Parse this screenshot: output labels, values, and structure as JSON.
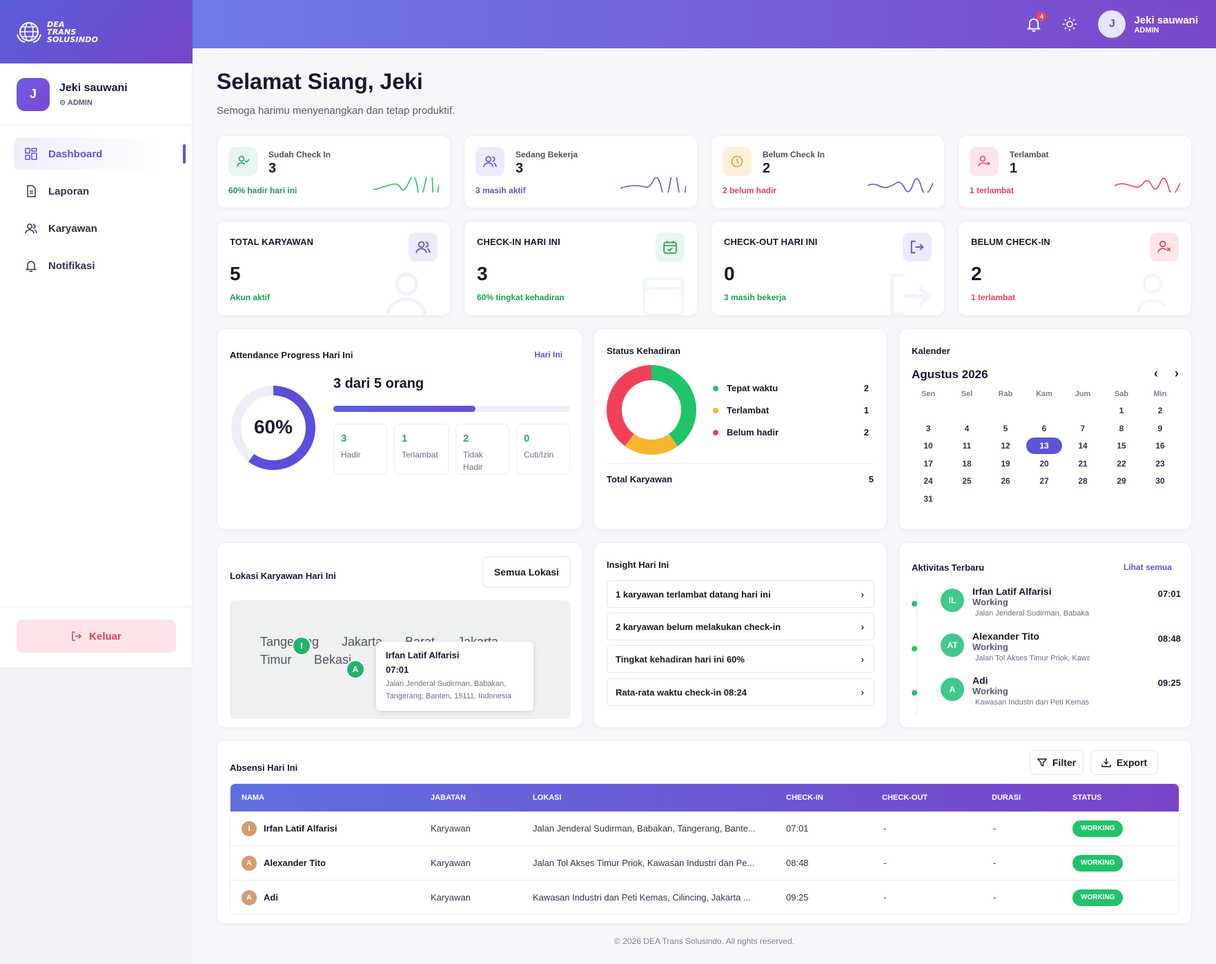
{
  "brand": {
    "line1": "DEA",
    "line2": "TRANS",
    "line3": "SOLUSINDO"
  },
  "user": {
    "name": "Jeki sauwani",
    "role": "ADMIN",
    "initial": "J"
  },
  "topbar": {
    "notif_count": "4"
  },
  "sidebar": {
    "items": [
      {
        "label": "Dashboard",
        "icon": "grid-icon",
        "active": true
      },
      {
        "label": "Laporan",
        "icon": "document-icon"
      },
      {
        "label": "Karyawan",
        "icon": "users-icon"
      },
      {
        "label": "Notifikasi",
        "icon": "bell-icon"
      }
    ],
    "logout": "Keluar"
  },
  "greeting": {
    "title": "Selamat Siang, Jeki",
    "subtitle": "Semoga harimu menyenangkan dan tetap produktif."
  },
  "stats": [
    {
      "label": "Sudah Check In",
      "value": "3",
      "sub": "60% hadir hari ini",
      "color": "#1f9d58",
      "icon": "user-check-icon"
    },
    {
      "label": "Sedang Bekerja",
      "value": "3",
      "sub": "3 masih aktif",
      "color": "#5c56d6",
      "icon": "users-icon"
    },
    {
      "label": "Belum Check In",
      "value": "2",
      "sub": "2 belum hadir",
      "color": "#e0405a",
      "icon": "clock-icon"
    },
    {
      "label": "Terlambat",
      "value": "1",
      "sub": "1 terlambat",
      "color": "#e0405a",
      "icon": "user-x-icon"
    }
  ],
  "summary": [
    {
      "label": "TOTAL KARYAWAN",
      "value": "5",
      "sub": "Akun aktif",
      "color": "#1f9d58",
      "icon": "users-icon"
    },
    {
      "label": "CHECK-IN HARI INI",
      "value": "3",
      "sub": "60% tingkat kehadiran",
      "color": "#1f9d58",
      "icon": "calendar-check-icon"
    },
    {
      "label": "CHECK-OUT HARI INI",
      "value": "0",
      "sub": "3 masih bekerja",
      "color": "#1f9d58",
      "icon": "logout-icon"
    },
    {
      "label": "BELUM CHECK-IN",
      "value": "2",
      "sub": "1 terlambat",
      "color": "#e0405a",
      "icon": "user-x-icon"
    }
  ],
  "progress": {
    "title": "Attendance Progress Hari Ini",
    "tag": "Hari Ini",
    "percent_label": "60%",
    "percent": 0.6,
    "headline": "3 dari 5 orang",
    "boxes": [
      {
        "num": "3",
        "label": "Hadir"
      },
      {
        "num": "1",
        "label": "Terlambat"
      },
      {
        "num": "2",
        "label": "Tidak Hadir"
      },
      {
        "num": "0",
        "label": "Cuti/Izin"
      }
    ]
  },
  "status": {
    "title": "Status Kehadiran",
    "items": [
      {
        "label": "Tepat waktu",
        "value": "2",
        "color": "#22c26a"
      },
      {
        "label": "Terlambat",
        "value": "1",
        "color": "#f7b52c"
      },
      {
        "label": "Belum hadir",
        "value": "2",
        "color": "#f2405b"
      }
    ],
    "total_label": "Total Karyawan",
    "total_value": "5"
  },
  "calendar": {
    "title": "Kalender",
    "month": "Agustus 2026",
    "days": [
      "Sen",
      "Sel",
      "Rab",
      "Kam",
      "Jum",
      "Sab",
      "Min"
    ],
    "first_weekday": 5,
    "num_days": 31,
    "today": "13"
  },
  "map": {
    "title": "Lokasi Karyawan Hari Ini",
    "button": "Semua Lokasi",
    "labels": {
      "a": "Tangerang",
      "b": "Jakarta",
      "c": "Barat",
      "d": "Jakarta",
      "e": "Timur",
      "f": "Bekasi"
    },
    "marker_i": "I",
    "marker_a": "A",
    "popup": {
      "name": "Irfan Latif Alfarisi",
      "time": "07:01",
      "address": "Jalan Jenderal Sudirman, Babakan, Tangerang, Banten, 15111, Indonesia"
    }
  },
  "insight": {
    "title": "Insight Hari Ini",
    "items": [
      "1 karyawan terlambat datang hari ini",
      "2 karyawan belum melakukan check-in",
      "Tingkat kehadiran hari ini 60%",
      "Rata-rata waktu check-in 08:24"
    ]
  },
  "activity": {
    "title": "Aktivitas Terbaru",
    "link": "Lihat semua",
    "items": [
      {
        "initials": "IL",
        "name": "Irfan Latif Alfarisi",
        "status": "Working",
        "location": "Jalan Jenderal Sudirman, Babakan",
        "time": "07:01"
      },
      {
        "initials": "AT",
        "name": "Alexander Tito",
        "status": "Working",
        "location": "Jalan Tol Akses Timur Priok, Kawasan",
        "time": "08:48"
      },
      {
        "initials": "A",
        "name": "Adi",
        "status": "Working",
        "location": "Kawasan Industri dan Peti Kemas",
        "time": "09:25"
      }
    ]
  },
  "table": {
    "title": "Absensi Hari Ini",
    "filter": "Filter",
    "export": "Export",
    "headers": [
      "NAMA",
      "JABATAN",
      "LOKASI",
      "CHECK-IN",
      "CHECK-OUT",
      "DURASI",
      "STATUS"
    ],
    "rows": [
      {
        "initial": "I",
        "name": "Irfan Latif Alfarisi",
        "jabatan": "Karyawan",
        "lokasi": "Jalan Jenderal Sudirman, Babakan, Tangerang, Bante...",
        "checkin": "07:01",
        "checkout": "-",
        "durasi": "-",
        "status": "WORKING"
      },
      {
        "initial": "A",
        "name": "Alexander Tito",
        "jabatan": "Karyawan",
        "lokasi": "Jalan Tol Akses Timur Priok, Kawasan Industri dan Pe...",
        "checkin": "08:48",
        "checkout": "-",
        "durasi": "-",
        "status": "WORKING"
      },
      {
        "initial": "A",
        "name": "Adi",
        "jabatan": "Karyawan",
        "lokasi": "Kawasan Industri dan Peti Kemas, Cilincing, Jakarta ...",
        "checkin": "09:25",
        "checkout": "-",
        "durasi": "-",
        "status": "WORKING"
      }
    ]
  },
  "footer": "© 2026 DEA Trans Solusindo. All rights reserved."
}
